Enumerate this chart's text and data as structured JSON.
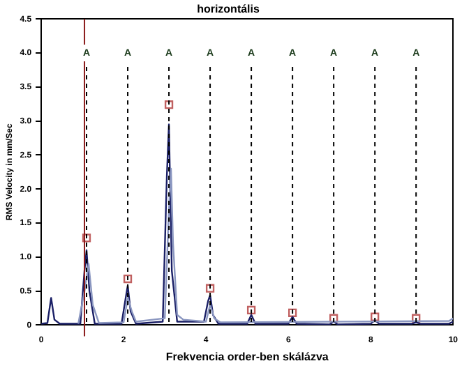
{
  "chart_data": {
    "type": "line",
    "title": "horizontális",
    "xlabel": "Frekvencia order-ben skálázva",
    "ylabel": "RMS Velocity in mm/Sec",
    "xlim": [
      0,
      10
    ],
    "xticks": [
      0,
      2,
      4,
      6,
      8,
      10
    ],
    "ylim": [
      0,
      4.5
    ],
    "yticks": [
      0,
      {
        "value": 0.5,
        "label": "0.5"
      },
      {
        "value": 1,
        "label": "1.0"
      },
      {
        "value": 1.5,
        "label": "1.5"
      },
      {
        "value": 2,
        "label": "2.0"
      },
      {
        "value": 2.5,
        "label": "2.5"
      },
      {
        "value": 3,
        "label": "3.0"
      },
      {
        "value": 3.5,
        "label": "3.5"
      },
      {
        "value": 4,
        "label": "4.0"
      },
      {
        "value": 4.5,
        "label": "4.5"
      }
    ],
    "grid": false,
    "legend": false,
    "marker": "none",
    "series": [
      {
        "type": "line",
        "color": "#8a96c0",
        "x": [
          0.9,
          1.05,
          1.15,
          1.25,
          1.4,
          2.0,
          2.1,
          2.2,
          2.3,
          3.0,
          3.1,
          3.15,
          3.2,
          3.3,
          3.45,
          4.0,
          4.1,
          4.2,
          4.35,
          9.9,
          10
        ],
        "values": [
          0.02,
          0.5,
          0.9,
          0.3,
          0.03,
          0.04,
          0.4,
          0.2,
          0.05,
          0.1,
          1.7,
          2.3,
          1.2,
          0.15,
          0.08,
          0.05,
          0.3,
          0.1,
          0.04,
          0.06,
          0.1
        ]
      },
      {
        "type": "line",
        "color": "#1a1f66",
        "x": [
          0,
          0.15,
          0.24,
          0.32,
          0.45,
          0.95,
          1.05,
          1.1,
          1.17,
          1.3,
          1.95,
          2.05,
          2.1,
          2.17,
          2.3,
          2.95,
          3.05,
          3.1,
          3.17,
          3.3,
          3.95,
          4.05,
          4.1,
          4.17,
          4.3,
          5.0,
          5.1,
          5.2,
          6.0,
          6.1,
          6.2,
          7.0,
          7.1,
          7.2,
          8.0,
          8.1,
          8.2,
          9.0,
          9.1,
          9.2,
          9.9,
          10
        ],
        "values": [
          0.02,
          0.03,
          0.4,
          0.08,
          0.02,
          0.02,
          0.8,
          1.1,
          0.5,
          0.02,
          0.02,
          0.4,
          0.58,
          0.2,
          0.02,
          0.05,
          2.2,
          2.95,
          0.8,
          0.05,
          0.05,
          0.35,
          0.44,
          0.15,
          0.02,
          0.02,
          0.15,
          0.02,
          0.02,
          0.12,
          0.02,
          0.01,
          0.05,
          0.01,
          0.02,
          0.07,
          0.02,
          0.02,
          0.04,
          0.02,
          0.02,
          0.05
        ]
      },
      {
        "type": "scatter",
        "marker": "square",
        "color": "#c06060",
        "x": [
          1.1,
          2.1,
          3.1,
          4.1,
          5.1,
          6.1,
          7.1,
          8.1,
          9.1
        ],
        "values": [
          1.28,
          0.68,
          3.24,
          0.54,
          0.22,
          0.18,
          0.1,
          0.12,
          0.1
        ]
      }
    ],
    "ref_lines": [
      {
        "axis": "x",
        "value": 1.1,
        "label": "A",
        "line_style": "dashed",
        "color": "#000000"
      },
      {
        "axis": "x",
        "value": 2.1,
        "label": "A",
        "line_style": "dashed",
        "color": "#000000"
      },
      {
        "axis": "x",
        "value": 3.1,
        "label": "A",
        "line_style": "dashed",
        "color": "#000000"
      },
      {
        "axis": "x",
        "value": 4.1,
        "label": "A",
        "line_style": "dashed",
        "color": "#000000"
      },
      {
        "axis": "x",
        "value": 5.1,
        "label": "A",
        "line_style": "dashed",
        "color": "#000000"
      },
      {
        "axis": "x",
        "value": 6.1,
        "label": "A",
        "line_style": "dashed",
        "color": "#000000"
      },
      {
        "axis": "x",
        "value": 7.1,
        "label": "A",
        "line_style": "dashed",
        "color": "#000000"
      },
      {
        "axis": "x",
        "value": 8.1,
        "label": "A",
        "line_style": "dashed",
        "color": "#000000"
      },
      {
        "axis": "x",
        "value": 9.1,
        "label": "A",
        "line_style": "dashed",
        "color": "#000000"
      },
      {
        "axis": "x",
        "value": 1.05,
        "label": null,
        "line_style": "solid",
        "color": "#8b1a1a"
      }
    ]
  }
}
